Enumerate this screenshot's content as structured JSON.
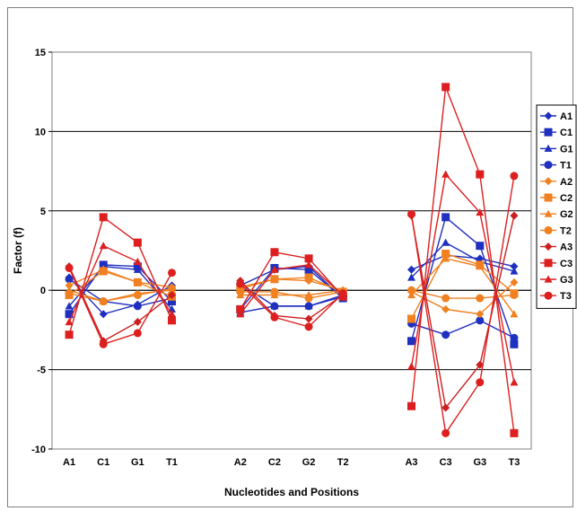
{
  "chart_data": {
    "type": "line",
    "title": "",
    "xlabel": "Nucleotides and Positions",
    "ylabel": "Factor (f)",
    "ylim": [
      -10,
      15
    ],
    "yticks": [
      -10,
      -5,
      0,
      5,
      10,
      15
    ],
    "grid": "horizontal major lines",
    "legend_position": "right",
    "categories": [
      "A1",
      "C1",
      "G1",
      "T1",
      "",
      "A2",
      "C2",
      "G2",
      "T2",
      "",
      "A3",
      "C3",
      "G3",
      "T3"
    ],
    "series": [
      {
        "name": "A1",
        "color": "#1f2fbf",
        "marker": "diamond",
        "values": [
          0.8,
          -1.5,
          -0.9,
          0.3,
          null,
          0.3,
          1.3,
          1.5,
          -0.5,
          null,
          1.3,
          2.2,
          2.0,
          1.5
        ]
      },
      {
        "name": "C1",
        "color": "#1f2fbf",
        "marker": "square",
        "values": [
          -1.5,
          1.6,
          1.5,
          -0.7,
          null,
          -1.2,
          1.4,
          1.3,
          -0.5,
          null,
          -3.2,
          4.6,
          2.8,
          -3.4
        ]
      },
      {
        "name": "G1",
        "color": "#1f2fbf",
        "marker": "triangle",
        "values": [
          -1.0,
          1.5,
          1.3,
          -1.2,
          null,
          -1.4,
          -1.0,
          -1.0,
          -0.3,
          null,
          0.8,
          3.0,
          1.8,
          1.2
        ]
      },
      {
        "name": "T1",
        "color": "#1f2fbf",
        "marker": "circle",
        "values": [
          0.7,
          -0.7,
          -1.0,
          -0.5,
          null,
          0.4,
          -1.0,
          -1.0,
          -0.4,
          null,
          -2.1,
          -2.8,
          -1.9,
          -3.0
        ]
      },
      {
        "name": "A2",
        "color": "#f08020",
        "marker": "diamond",
        "values": [
          0.3,
          1.3,
          0.5,
          0.2,
          null,
          0.2,
          0.7,
          0.6,
          0.0,
          null,
          -0.1,
          -1.2,
          -1.5,
          0.5
        ]
      },
      {
        "name": "C2",
        "color": "#f08020",
        "marker": "square",
        "values": [
          -0.3,
          1.2,
          0.5,
          -0.4,
          null,
          0.1,
          0.7,
          0.8,
          -0.1,
          null,
          -1.8,
          2.3,
          1.6,
          -0.2
        ]
      },
      {
        "name": "G2",
        "color": "#f08020",
        "marker": "triangle",
        "values": [
          0.0,
          -0.7,
          -0.2,
          0.0,
          null,
          -0.3,
          -0.3,
          -0.3,
          0.0,
          null,
          -0.3,
          2.0,
          1.5,
          -1.5
        ]
      },
      {
        "name": "T2",
        "color": "#f08020",
        "marker": "circle",
        "values": [
          -0.2,
          -0.7,
          -0.3,
          0.1,
          null,
          -0.1,
          -0.1,
          -0.5,
          -0.1,
          null,
          0.0,
          -0.5,
          -0.5,
          -0.3
        ]
      },
      {
        "name": "A3",
        "color": "#cc1f1f",
        "marker": "diamond",
        "values": [
          1.5,
          -3.2,
          -2.0,
          -0.3,
          null,
          0.6,
          -1.6,
          -1.8,
          -0.3,
          null,
          4.7,
          -7.4,
          -4.7,
          4.7
        ]
      },
      {
        "name": "C3",
        "color": "#dd1f1f",
        "marker": "square",
        "values": [
          -2.8,
          4.6,
          3.0,
          -1.9,
          null,
          -1.2,
          2.4,
          2.0,
          -0.4,
          null,
          -7.3,
          12.8,
          7.3,
          -9.0
        ]
      },
      {
        "name": "G3",
        "color": "#dd1f1f",
        "marker": "triangle",
        "values": [
          -2.0,
          2.8,
          1.8,
          -1.5,
          null,
          -1.5,
          1.3,
          1.6,
          -0.3,
          null,
          -4.8,
          7.3,
          4.9,
          -5.8
        ]
      },
      {
        "name": "T3",
        "color": "#dd1f1f",
        "marker": "circle",
        "values": [
          1.4,
          -3.4,
          -2.7,
          1.1,
          null,
          0.4,
          -1.7,
          -2.3,
          -0.2,
          null,
          4.8,
          -9.0,
          -5.8,
          7.2
        ]
      }
    ]
  }
}
